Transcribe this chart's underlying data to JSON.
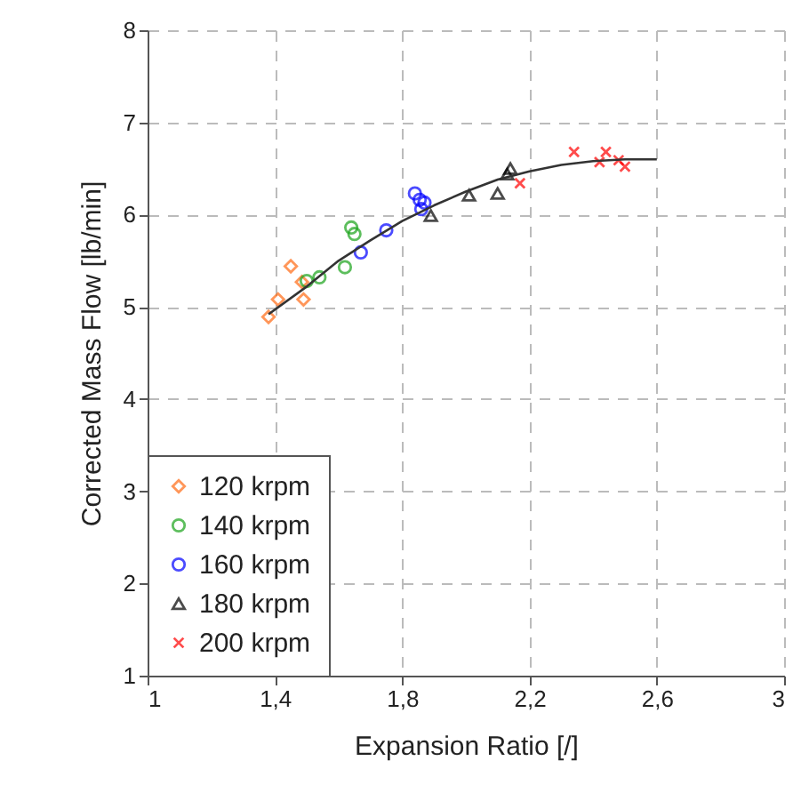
{
  "chart_data": {
    "type": "scatter",
    "xlabel": "Expansion Ratio [/]",
    "ylabel": "Corrected Mass Flow [lb/min]",
    "xlim": [
      1,
      3
    ],
    "ylim": [
      1,
      8
    ],
    "xticks": [
      1,
      {
        "value": 1.4,
        "label": "1,4"
      },
      {
        "value": 1.8,
        "label": "1,8"
      },
      {
        "value": 2.2,
        "label": "2,2"
      },
      {
        "value": 2.6,
        "label": "2,6"
      },
      3
    ],
    "yticks": [
      1,
      2,
      3,
      4,
      5,
      6,
      7,
      8
    ],
    "grid": true,
    "legend": "bottom left",
    "series": [
      {
        "name": "120 krpm",
        "color": "#ff6a13",
        "marker": "diamond",
        "x": [
          1.38,
          1.41,
          1.45,
          1.49,
          1.485
        ],
        "values": [
          4.89,
          5.08,
          5.44,
          5.08,
          5.27
        ]
      },
      {
        "name": "140 krpm",
        "color": "#1aa31a",
        "marker": "circle",
        "x": [
          1.5,
          1.54,
          1.62,
          1.64,
          1.65
        ],
        "values": [
          5.28,
          5.32,
          5.43,
          5.86,
          5.79
        ]
      },
      {
        "name": "160 krpm",
        "color": "#0000ff",
        "marker": "circle",
        "x": [
          1.67,
          1.75,
          1.84,
          1.855,
          1.87,
          1.86
        ],
        "values": [
          5.59,
          5.83,
          6.23,
          6.16,
          6.13,
          6.06
        ]
      },
      {
        "name": "180 krpm",
        "color": "#000000",
        "marker": "triangle",
        "x": [
          1.89,
          2.01,
          2.1,
          2.14,
          2.13
        ],
        "values": [
          5.99,
          6.21,
          6.23,
          6.5,
          6.44
        ]
      },
      {
        "name": "200 krpm",
        "color": "#ff0000",
        "marker": "cross",
        "x": [
          2.17,
          2.34,
          2.42,
          2.44,
          2.48,
          2.5
        ],
        "values": [
          6.34,
          6.68,
          6.57,
          6.68,
          6.59,
          6.52
        ]
      },
      {
        "type": "line",
        "color": "#333333",
        "x": [
          1.38,
          1.5,
          1.6,
          1.7,
          1.8,
          1.9,
          2.0,
          2.1,
          2.2,
          2.3,
          2.4,
          2.5,
          2.6
        ],
        "values": [
          4.92,
          5.22,
          5.5,
          5.72,
          5.93,
          6.1,
          6.25,
          6.38,
          6.47,
          6.54,
          6.58,
          6.6,
          6.6
        ]
      }
    ]
  }
}
